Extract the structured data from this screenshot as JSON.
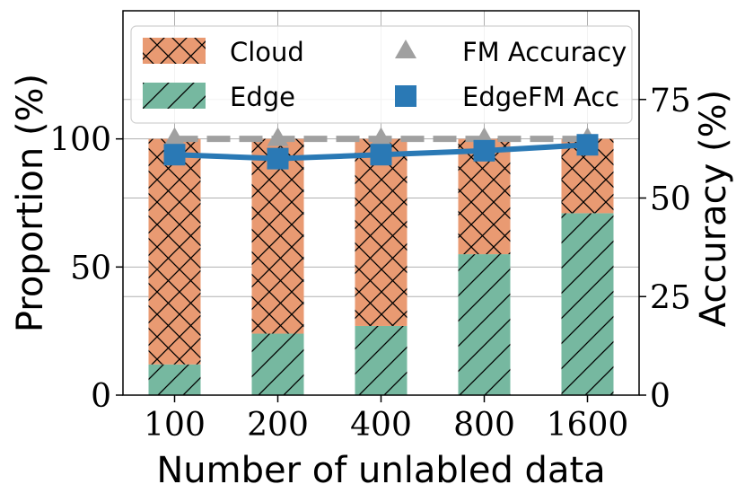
{
  "chart_data": {
    "type": "bar",
    "categories": [
      "100",
      "200",
      "400",
      "800",
      "1600"
    ],
    "series": [
      {
        "name": "Edge",
        "axis": "left",
        "stack": "proportion",
        "color": "#76b8a0",
        "hatch": "/",
        "values": [
          12,
          24,
          27,
          55,
          71
        ]
      },
      {
        "name": "Cloud",
        "axis": "left",
        "stack": "proportion",
        "color": "#e99a72",
        "hatch": "x",
        "values": [
          88,
          76,
          73,
          45,
          29
        ]
      },
      {
        "name": "FM Accuracy",
        "axis": "right",
        "type": "line",
        "style": "dashed",
        "marker": "triangle",
        "color": "#a0a0a0",
        "values": [
          65,
          65,
          65,
          65,
          65
        ]
      },
      {
        "name": "EdgeFM Acc",
        "axis": "right",
        "type": "line",
        "style": "solid",
        "marker": "square",
        "color": "#2a79b5",
        "values": [
          61,
          60,
          61,
          62,
          63.5
        ]
      }
    ],
    "xlabel": "Number of unlabled data",
    "ylabel": "Proportion (%)",
    "ylabel_right": "Accuracy (%)",
    "ylim": [
      0,
      150
    ],
    "ylim_right": [
      0,
      97.5
    ],
    "yticks": [
      0,
      50,
      100
    ],
    "yticks_right": [
      0,
      25,
      50,
      75
    ],
    "grid": true,
    "legend": {
      "placement": "upper-center",
      "columns": 2,
      "order": [
        "Cloud",
        "FM Accuracy",
        "Edge",
        "EdgeFM Acc"
      ]
    }
  }
}
